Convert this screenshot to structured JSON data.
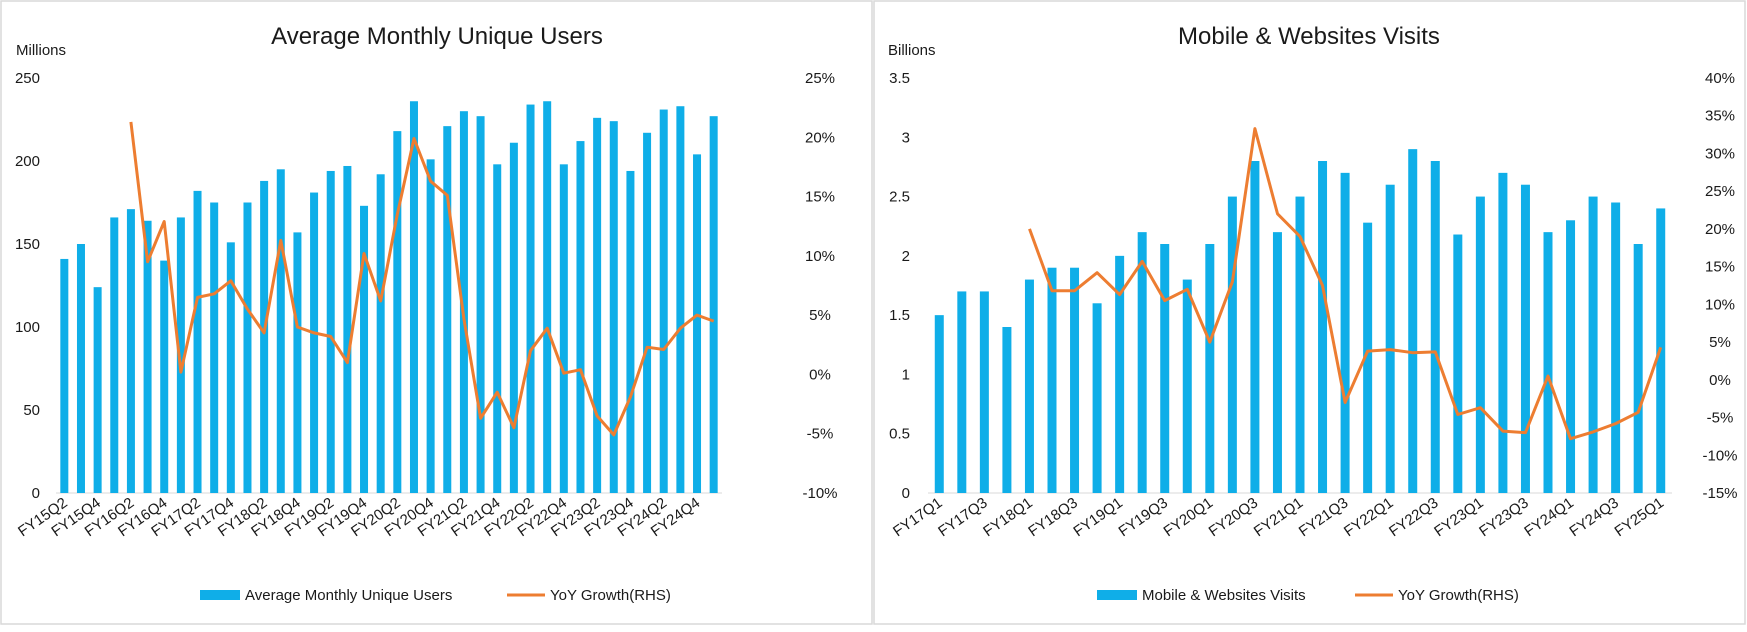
{
  "colors": {
    "bar": "#0FAEE8",
    "line": "#ED7D31",
    "border": "#D9D9D9",
    "axis": "#D9D9D9"
  },
  "chart_data": [
    {
      "type": "bar+line",
      "title": "Average Monthly Unique Users",
      "ylabel_left": "Millions",
      "left_axis": {
        "min": 0,
        "max": 250,
        "step": 50,
        "ticks": [
          "0",
          "50",
          "100",
          "150",
          "200",
          "250"
        ]
      },
      "right_axis": {
        "min": -10,
        "max": 25,
        "step": 5,
        "ticks": [
          "-10%",
          "-5%",
          "0%",
          "5%",
          "10%",
          "15%",
          "20%",
          "25%"
        ]
      },
      "categories": [
        "FY15Q2",
        "FY15Q3",
        "FY15Q4",
        "FY16Q1",
        "FY16Q2",
        "FY16Q3",
        "FY16Q4",
        "FY17Q1",
        "FY17Q2",
        "FY17Q3",
        "FY17Q4",
        "FY18Q1",
        "FY18Q2",
        "FY18Q3",
        "FY18Q4",
        "FY19Q1",
        "FY19Q2",
        "FY19Q3",
        "FY19Q4",
        "FY20Q1",
        "FY20Q2",
        "FY20Q3",
        "FY20Q4",
        "FY21Q1",
        "FY21Q2",
        "FY21Q3",
        "FY21Q4",
        "FY22Q1",
        "FY22Q2",
        "FY22Q3",
        "FY22Q4",
        "FY23Q1",
        "FY23Q2",
        "FY23Q3",
        "FY23Q4",
        "FY24Q1",
        "FY24Q2",
        "FY24Q3",
        "FY24Q4",
        "FY25Q1"
      ],
      "tick_labels": [
        "FY15Q2",
        "FY15Q4",
        "FY16Q2",
        "FY16Q4",
        "FY17Q2",
        "FY17Q4",
        "FY18Q2",
        "FY18Q4",
        "FY19Q2",
        "FY19Q4",
        "FY20Q2",
        "FY20Q4",
        "FY21Q2",
        "FY21Q4",
        "FY22Q2",
        "FY22Q4",
        "FY23Q2",
        "FY23Q4",
        "FY24Q2",
        "FY24Q4"
      ],
      "series": [
        {
          "name": "Average Monthly Unique Users",
          "kind": "bar",
          "axis": "left",
          "values": [
            141,
            150,
            124,
            166,
            171,
            164,
            140,
            166,
            182,
            175,
            151,
            175,
            188,
            195,
            157,
            181,
            194,
            197,
            173,
            192,
            218,
            236,
            201,
            221,
            230,
            227,
            198,
            211,
            234,
            236,
            198,
            212,
            226,
            224,
            194,
            217,
            231,
            233,
            204,
            227
          ]
        },
        {
          "name": "YoY Growth(RHS)",
          "kind": "line",
          "axis": "right",
          "values": [
            null,
            null,
            null,
            null,
            21.3,
            9.5,
            12.9,
            0.2,
            6.5,
            6.8,
            7.9,
            5.5,
            3.5,
            11.3,
            4.0,
            3.5,
            3.2,
            1.0,
            10.2,
            6.2,
            13.5,
            19.9,
            16.3,
            15.1,
            4.7,
            -3.7,
            -1.5,
            -4.5,
            2.0,
            3.9,
            0.1,
            0.4,
            -3.5,
            -5.1,
            -1.9,
            2.3,
            2.1,
            3.9,
            5.0,
            4.5
          ]
        }
      ]
    },
    {
      "type": "bar+line",
      "title": "Mobile & Websites Visits",
      "ylabel_left": "Billions",
      "left_axis": {
        "min": 0,
        "max": 3.5,
        "step": 0.5,
        "ticks": [
          "0",
          "0.5",
          "1",
          "1.5",
          "2",
          "2.5",
          "3",
          "3.5"
        ]
      },
      "right_axis": {
        "min": -15,
        "max": 40,
        "step": 5,
        "ticks": [
          "-15%",
          "-10%",
          "-5%",
          "0%",
          "5%",
          "10%",
          "15%",
          "20%",
          "25%",
          "30%",
          "35%",
          "40%"
        ]
      },
      "categories": [
        "FY17Q1",
        "FY17Q2",
        "FY17Q3",
        "FY17Q4",
        "FY18Q1",
        "FY18Q2",
        "FY18Q3",
        "FY18Q4",
        "FY19Q1",
        "FY19Q2",
        "FY19Q3",
        "FY19Q4",
        "FY20Q1",
        "FY20Q2",
        "FY20Q3",
        "FY20Q4",
        "FY21Q1",
        "FY21Q2",
        "FY21Q3",
        "FY21Q4",
        "FY22Q1",
        "FY22Q2",
        "FY22Q3",
        "FY22Q4",
        "FY23Q1",
        "FY23Q2",
        "FY23Q3",
        "FY23Q4",
        "FY24Q1",
        "FY24Q2",
        "FY24Q3",
        "FY24Q4",
        "FY25Q1"
      ],
      "tick_labels": [
        "FY17Q1",
        "FY17Q3",
        "FY18Q1",
        "FY18Q3",
        "FY19Q1",
        "FY19Q3",
        "FY20Q1",
        "FY20Q3",
        "FY21Q1",
        "FY21Q3",
        "FY22Q1",
        "FY22Q3",
        "FY23Q1",
        "FY23Q3",
        "FY24Q1",
        "FY24Q3",
        "FY25Q1"
      ],
      "series": [
        {
          "name": "Mobile & Websites Visits",
          "kind": "bar",
          "axis": "left",
          "values": [
            1.5,
            1.7,
            1.7,
            1.4,
            1.8,
            1.9,
            1.9,
            1.6,
            2.0,
            2.2,
            2.1,
            1.8,
            2.1,
            2.5,
            2.8,
            2.2,
            2.5,
            2.8,
            2.7,
            2.28,
            2.6,
            2.9,
            2.8,
            2.18,
            2.5,
            2.7,
            2.6,
            2.2,
            2.3,
            2.5,
            2.45,
            2.1,
            2.4
          ]
        },
        {
          "name": "YoY Growth(RHS)",
          "kind": "line",
          "axis": "right",
          "values": [
            null,
            null,
            null,
            null,
            20.0,
            11.8,
            11.8,
            14.2,
            11.3,
            15.7,
            10.5,
            12.0,
            5.0,
            13.0,
            33.3,
            22.0,
            19.0,
            12.5,
            -3.0,
            3.8,
            4.0,
            3.6,
            3.7,
            -4.6,
            -3.7,
            -6.8,
            -7.0,
            0.5,
            -7.8,
            -6.9,
            -5.8,
            -4.3,
            4.3
          ]
        }
      ]
    }
  ]
}
